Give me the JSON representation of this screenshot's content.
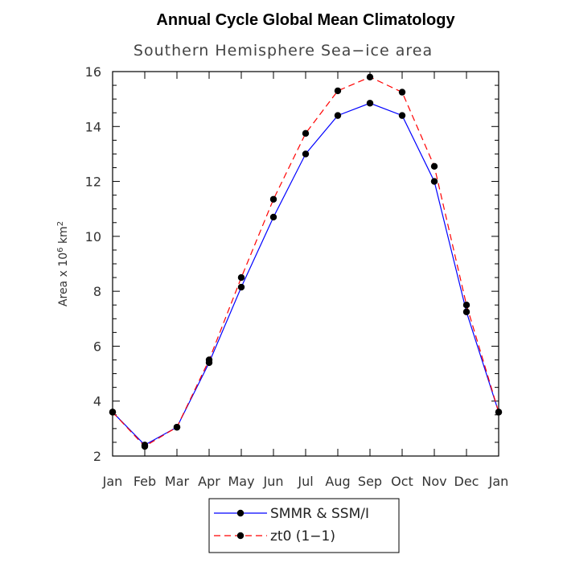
{
  "chart_data": {
    "type": "line",
    "title": "Annual Cycle Global Mean Climatology",
    "subtitle": "Southern Hemisphere Sea−ice area",
    "ylabel_prefix": "Area x 10",
    "ylabel_exp": "6",
    "ylabel_unit": " km",
    "ylabel_unit_exp": "2",
    "categories": [
      "Jan",
      "Feb",
      "Mar",
      "Apr",
      "May",
      "Jun",
      "Jul",
      "Aug",
      "Sep",
      "Oct",
      "Nov",
      "Dec",
      "Jan"
    ],
    "ylim": [
      2,
      16
    ],
    "yticks": [
      2,
      4,
      6,
      8,
      10,
      12,
      14,
      16
    ],
    "series": [
      {
        "name": "SMMR & SSM/I",
        "color": "#0000ff",
        "dash": "solid",
        "values": [
          3.6,
          2.4,
          3.05,
          5.4,
          8.15,
          10.7,
          13.0,
          14.4,
          14.85,
          14.4,
          12.0,
          7.25,
          3.6
        ]
      },
      {
        "name": "zt0 (1−1)",
        "color": "#ff0000",
        "dash": "dashed",
        "values": [
          3.6,
          2.35,
          3.05,
          5.5,
          8.5,
          11.35,
          13.75,
          15.3,
          15.8,
          15.25,
          12.55,
          7.5,
          3.6
        ]
      }
    ],
    "legend_position": "bottom-center"
  }
}
